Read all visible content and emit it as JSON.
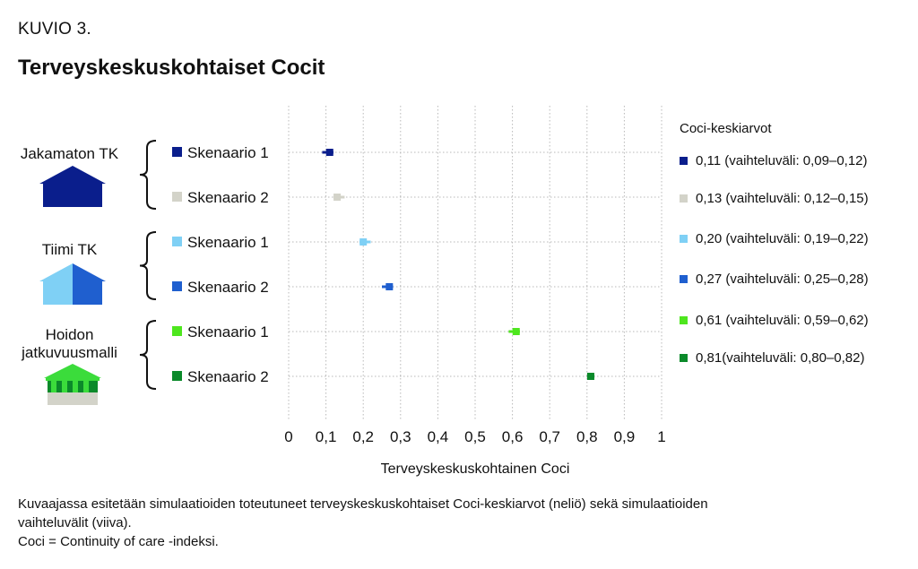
{
  "figure_label": "KUVIO 3.",
  "title": "Terveyskeskuskohtaiset Cocit",
  "groups": [
    {
      "name": "Jakamaton TK",
      "icon": "house-navy-icon",
      "color": "#0a1e8c"
    },
    {
      "name": "Tiimi TK",
      "icon": "house-light-blue-icon",
      "color": "#7fd0f5"
    },
    {
      "name": "Hoidon jatkuvuusmalli",
      "icon": "house-green-striped-icon",
      "color": "#3bdc3b"
    }
  ],
  "legend": {
    "title": "Coci-keskiarvot",
    "items": [
      {
        "label": "0,11 (vaihteluväli: 0,09–0,12)",
        "color": "#0a1e8c"
      },
      {
        "label": "0,13 (vaihteluväli: 0,12–0,15)",
        "color": "#d3d3c9"
      },
      {
        "label": "0,20 (vaihteluväli: 0,19–0,22)",
        "color": "#7fd0f5"
      },
      {
        "label": "0,27 (vaihteluväli: 0,25–0,28)",
        "color": "#1f5fcf"
      },
      {
        "label": "0,61 (vaihteluväli: 0,59–0,62)",
        "color": "#4ee61e"
      },
      {
        "label": "0,81(vaihteluväli: 0,80–0,82)",
        "color": "#0b8a2a"
      }
    ]
  },
  "chart_data": {
    "type": "scatter",
    "xlabel": "Terveyskeskuskohtainen Coci",
    "xlim": [
      0,
      1
    ],
    "xticks": [
      "0",
      "0,1",
      "0,2",
      "0,3",
      "0,4",
      "0,5",
      "0,6",
      "0,7",
      "0,8",
      "0,9",
      "1"
    ],
    "grid": true,
    "categories": [
      "Skenaario 1",
      "Skenaario 2",
      "Skenaario 1",
      "Skenaario 2",
      "Skenaario 1",
      "Skenaario 2"
    ],
    "points": [
      {
        "label": "Skenaario 1",
        "group": "Jakamaton TK",
        "mean": 0.11,
        "min": 0.09,
        "max": 0.12,
        "color": "#0a1e8c"
      },
      {
        "label": "Skenaario 2",
        "group": "Jakamaton TK",
        "mean": 0.13,
        "min": 0.12,
        "max": 0.15,
        "color": "#d3d3c9"
      },
      {
        "label": "Skenaario 1",
        "group": "Tiimi TK",
        "mean": 0.2,
        "min": 0.19,
        "max": 0.22,
        "color": "#7fd0f5"
      },
      {
        "label": "Skenaario 2",
        "group": "Tiimi TK",
        "mean": 0.27,
        "min": 0.25,
        "max": 0.28,
        "color": "#1f5fcf"
      },
      {
        "label": "Skenaario 1",
        "group": "Hoidon jatkuvuusmalli",
        "mean": 0.61,
        "min": 0.59,
        "max": 0.62,
        "color": "#4ee61e"
      },
      {
        "label": "Skenaario 2",
        "group": "Hoidon jatkuvuusmalli",
        "mean": 0.81,
        "min": 0.8,
        "max": 0.82,
        "color": "#0b8a2a"
      }
    ]
  },
  "note": [
    "Kuvaajassa esitetään simulaatioiden toteutuneet terveyskeskuskohtaiset Coci-keskiarvot (neliö) sekä simulaatioiden",
    "vaihteluvälit (viiva).",
    "Coci = Continuity of care -indeksi."
  ]
}
